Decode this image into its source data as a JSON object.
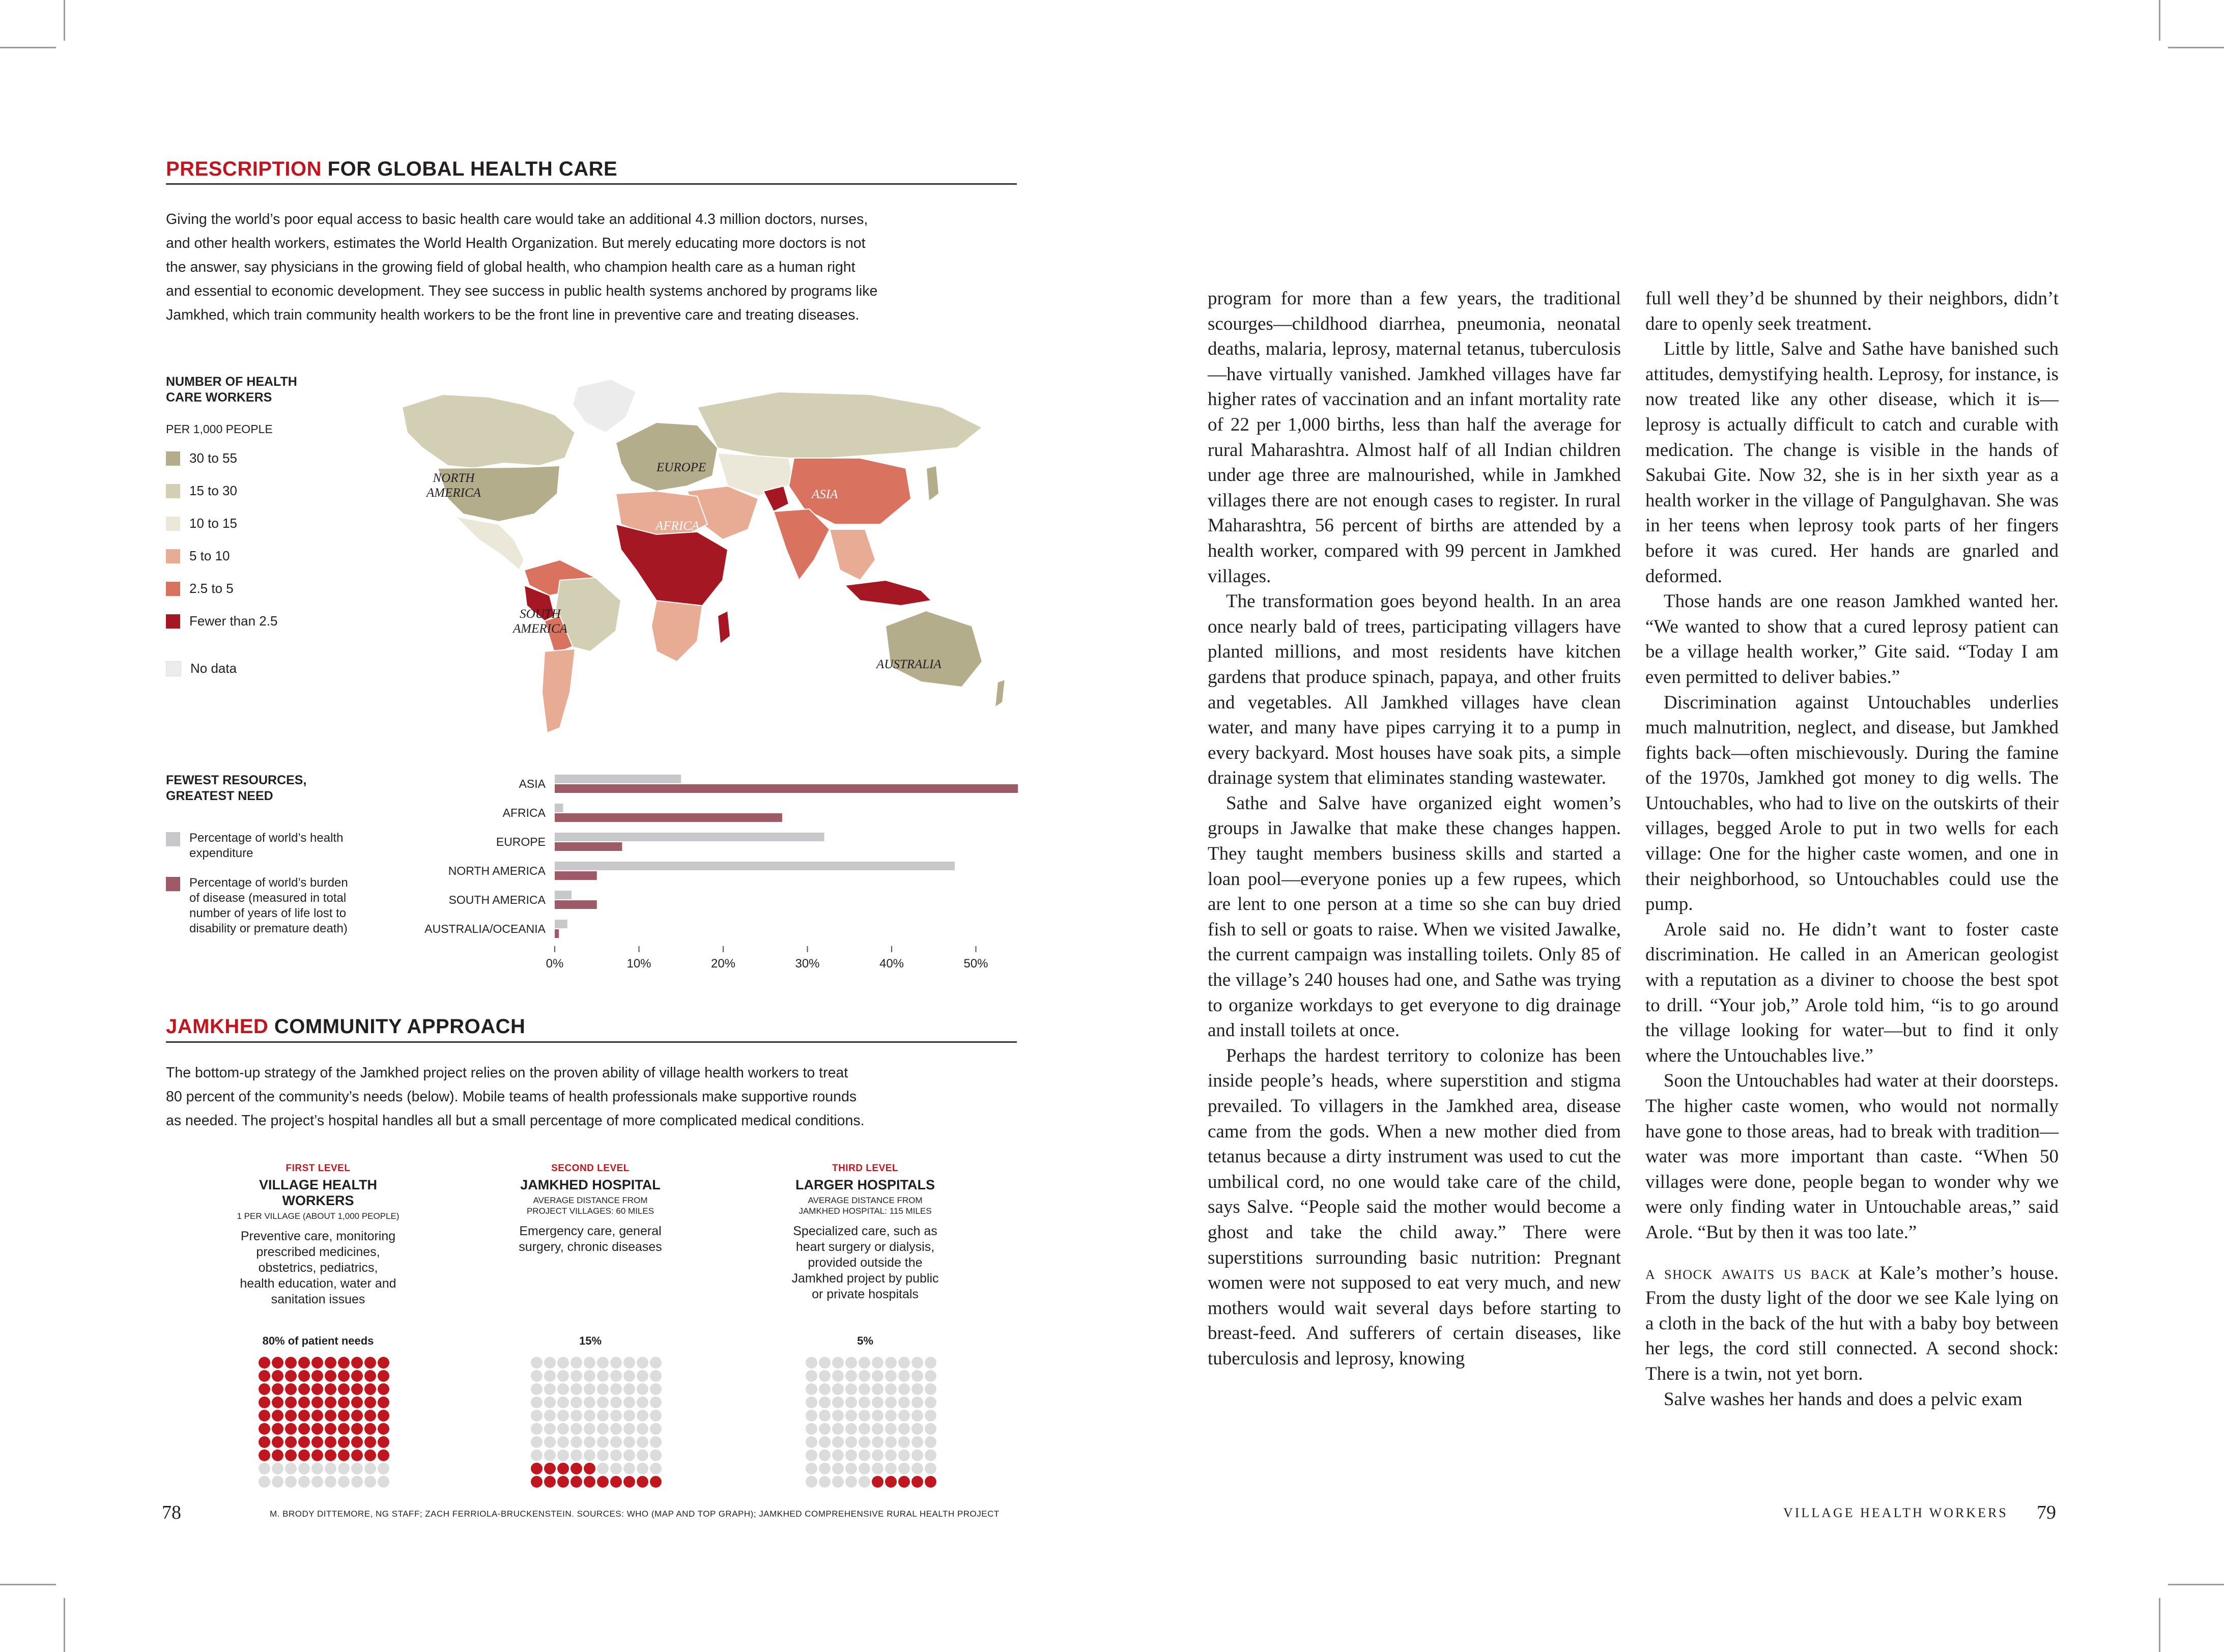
{
  "left_page": {
    "section1_heading": {
      "red": "PRESCRIPTION",
      "rest": " FOR GLOBAL HEALTH CARE"
    },
    "intro_lines": [
      "Giving the world’s poor equal access to basic health care would take an additional 4.3 million doctors, nurses,",
      "and other health workers, estimates the World Health Organization. But merely educating more doctors is not",
      "the answer, say physicians in the growing field of global health, who champion health care as a human right",
      "and essential to economic development. They see success in public health systems anchored by programs like",
      "Jamkhed, which train community health workers to be the front line in preventive care and treating diseases."
    ],
    "map_legend": {
      "title_line1": "NUMBER OF HEALTH",
      "title_line2": "CARE WORKERS",
      "unit": "PER 1,000 PEOPLE",
      "items": [
        {
          "label": "30 to 55",
          "color": "#b3ad8c"
        },
        {
          "label": "15 to 30",
          "color": "#d3cfb4"
        },
        {
          "label": "10 to 15",
          "color": "#ebe8d9"
        },
        {
          "label": "5 to 10",
          "color": "#e8ac95"
        },
        {
          "label": "2.5 to 5",
          "color": "#d9725e"
        },
        {
          "label": "Fewer than 2.5",
          "color": "#a51722"
        }
      ],
      "no_data": {
        "label": "No data",
        "color": "#ececec"
      }
    },
    "map_labels": {
      "north_america_1": "NORTH",
      "north_america_2": "AMERICA",
      "europe": "EUROPE",
      "asia": "ASIA",
      "africa": "AFRICA",
      "south_america_1": "SOUTH",
      "south_america_2": "AMERICA",
      "australia": "AUSTRALIA"
    },
    "bar_legend": {
      "title_line1": "FEWEST RESOURCES,",
      "title_line2": "GREATEST NEED",
      "item1_line1": "Percentage of world’s health",
      "item1_line2": "expenditure",
      "item1_color": "#c8c8ca",
      "item2_lines": [
        "Percentage of world’s burden",
        "of disease (measured in total",
        "number of years of life lost to",
        "disability or premature death)"
      ],
      "item2_color": "#9e5a66"
    },
    "section2_heading": {
      "red": "JAMKHED",
      "rest": " COMMUNITY APPROACH"
    },
    "intro2_lines": [
      "The bottom-up strategy of the Jamkhed project relies on the proven ability of village health workers to treat",
      "80 percent of the community’s needs (below). Mobile teams of health professionals make supportive rounds",
      "as needed. The project’s hospital handles all but a small percentage of more complicated medical conditions."
    ],
    "levels": [
      {
        "kicker": "FIRST LEVEL",
        "title_lines": [
          "VILLAGE HEALTH",
          "WORKERS"
        ],
        "sub_lines": [
          "1 PER VILLAGE (ABOUT 1,000 PEOPLE)"
        ],
        "desc_lines": [
          "Preventive care, monitoring",
          "prescribed medicines,",
          "obstetrics, pediatrics,",
          "health education, water and",
          "sanitation issues"
        ],
        "pct_label": "80% of patient needs",
        "pct_value": 80
      },
      {
        "kicker": "SECOND LEVEL",
        "title_lines": [
          "JAMKHED HOSPITAL"
        ],
        "sub_lines": [
          "AVERAGE DISTANCE FROM",
          "PROJECT VILLAGES: 60 MILES"
        ],
        "desc_lines": [
          "Emergency care, general",
          "surgery, chronic diseases"
        ],
        "pct_label": "15%",
        "pct_value": 15
      },
      {
        "kicker": "THIRD LEVEL",
        "title_lines": [
          "LARGER HOSPITALS"
        ],
        "sub_lines": [
          "AVERAGE DISTANCE FROM",
          "JAMKHED HOSPITAL: 115 MILES"
        ],
        "desc_lines": [
          "Specialized care, such as",
          "heart surgery or dialysis,",
          "provided outside the",
          "Jamkhed project by public",
          "or private hospitals"
        ],
        "pct_label": "5%",
        "pct_value": 5
      }
    ],
    "folio": "78",
    "credit": "M. BRODY DITTEMORE, NG STAFF; ZACH FERRIOLA-BRUCKENSTEIN. SOURCES: WHO (MAP AND TOP GRAPH); JAMKHED COMPREHENSIVE RURAL HEALTH PROJECT"
  },
  "chart_data": {
    "type": "bar",
    "categories": [
      "ASIA",
      "AFRICA",
      "EUROPE",
      "NORTH AMERICA",
      "SOUTH AMERICA",
      "AUSTRALIA/OCEANIA"
    ],
    "series": [
      {
        "name": "Percentage of world’s health expenditure",
        "values": [
          15,
          1,
          32,
          47.5,
          2,
          1.5
        ],
        "color": "#c8c8ca"
      },
      {
        "name": "Percentage of world’s burden of disease (measured in total number of years of life lost to disability or premature death)",
        "values": [
          55,
          27,
          8,
          5,
          5,
          0.5
        ],
        "color": "#9e5a66"
      }
    ],
    "ticks": [
      "0%",
      "10%",
      "20%",
      "30%",
      "40%",
      "50%"
    ],
    "xlim": [
      0,
      55
    ],
    "orientation": "horizontal",
    "grid": false
  },
  "right_page": {
    "col1": [
      "program for more than a few years, the traditional scourges—childhood diarrhea, pneumonia, neonatal deaths, malaria, leprosy, maternal tetanus, tuberculosis—have virtually vanished. Jamkhed villages have far higher rates of vaccination and an infant mortality rate of 22 per 1,000 births, less than half the average for rural Maharashtra. Almost half of all Indian children under age three are malnourished, while in Jamkhed villages there are not enough cases to register. In rural Maharashtra, 56 percent of births are attended by a health worker, compared with 99 percent in Jamkhed villages.",
      "The transformation goes beyond health. In an area once nearly bald of trees, participating villagers have planted millions, and most residents have kitchen gardens that produce spinach, papaya, and other fruits and vegetables. All Jamkhed villages have clean water, and many have pipes carrying it to a pump in every backyard. Most houses have soak pits, a simple drainage system that eliminates standing wastewater.",
      "Sathe and Salve have organized eight women’s groups in Jawalke that make these changes happen. They taught members business skills and started a loan pool—everyone ponies up a few rupees, which are lent to one person at a time so she can buy dried fish to sell or goats to raise. When we visited Jawalke, the current campaign was installing toilets. Only 85 of the village’s 240 houses had one, and Sathe was trying to organize workdays to get everyone to dig drainage and install toilets at once.",
      "Perhaps the hardest territory to colonize has been inside people’s heads, where superstition and stigma prevailed. To villagers in the Jamkhed area, disease came from the gods. When a new mother died from tetanus because a dirty instrument was used to cut the umbilical cord, no one would take care of the child, says Salve. “People said the mother would become a ghost and take the child away.” There were superstitions surrounding basic nutrition: Pregnant women were not supposed to eat very much, and new mothers would wait several days before starting to breast-feed. And sufferers of certain diseases, like tuberculosis and leprosy, knowing"
    ],
    "col2": [
      "full well they’d be shunned by their neighbors, didn’t dare to openly seek treatment.",
      "Little by little, Salve and Sathe have banished such attitudes, demystifying health. Leprosy, for instance, is now treated like any other disease, which it is—leprosy is actually difficult to catch and curable with medication. The change is visible in the hands of Sakubai Gite. Now 32, she is in her sixth year as a health worker in the village of Pangulghavan. She was in her teens when leprosy took parts of her fingers before it was cured. Her hands are gnarled and deformed.",
      "Those hands are one reason Jamkhed wanted her. “We wanted to show that a cured leprosy patient can be a village health worker,” Gite said. “Today I am even permitted to deliver babies.”",
      "Discrimination against Untouchables underlies much malnutrition, neglect, and disease, but Jamkhed fights back—often mischievously. During the famine of the 1970s, Jamkhed got money to dig wells. The Untouchables, who had to live on the outskirts of their villages, begged Arole to put in two wells for each village: One for the higher caste women, and one in their neighborhood, so Untouchables could use the pump.",
      "Arole said no. He didn’t want to foster caste discrimination. He called in an American geologist with a reputation as a diviner to choose the best spot to drill. “Your job,” Arole told him, “is to go around the village looking for water—but to find it only where the Untouchables live.”",
      "Soon the Untouchables had water at their doorsteps. The higher caste women, who would not normally have gone to those areas, had to break with tradition—water was more important than caste. “When 50 villages were done, people began to wonder why we were only finding water in Untouchable areas,” said Arole. “But by then it was too late.”"
    ],
    "col2_section_lead": "a shock awaits us back",
    "col2_section_rest": " at Kale’s mother’s house. From the dusty light of the door we see Kale lying on a cloth in the back of the hut with a baby boy between her legs, the cord still connected. A second shock: There is a twin, not yet born.",
    "col2_last": "Salve washes her hands and does a pelvic exam",
    "running_head": "VILLAGE HEALTH WORKERS",
    "folio": "79"
  }
}
